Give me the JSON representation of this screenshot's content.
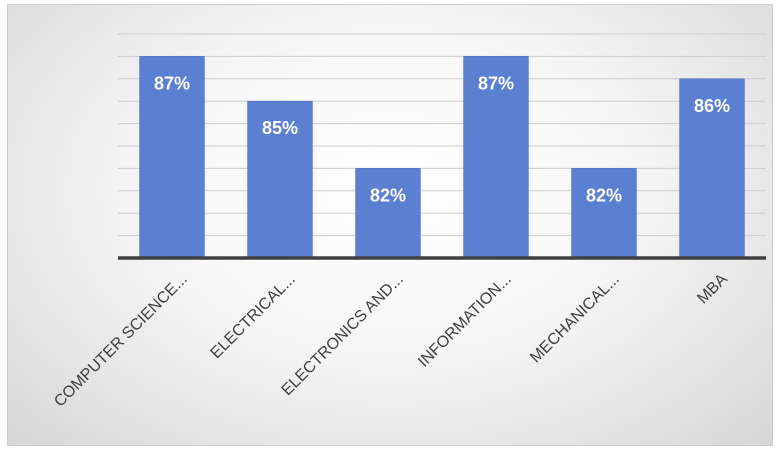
{
  "chart_data": {
    "type": "bar",
    "categories": [
      "COMPUTER SCIENCE...",
      "ELECTRICAL...",
      "ELECTRONICS AND...",
      "INFORMATION...",
      "MECHANICAL...",
      "MBA"
    ],
    "values": [
      87,
      85,
      82,
      87,
      82,
      86
    ],
    "data_labels": [
      "87%",
      "85%",
      "82%",
      "87%",
      "82%",
      "86%"
    ],
    "title": "",
    "xlabel": "",
    "ylabel": "",
    "ylim": [
      78,
      88
    ],
    "grid": true,
    "legend": "none",
    "bar_color": "#5b7fd1",
    "value_unit": "%"
  }
}
